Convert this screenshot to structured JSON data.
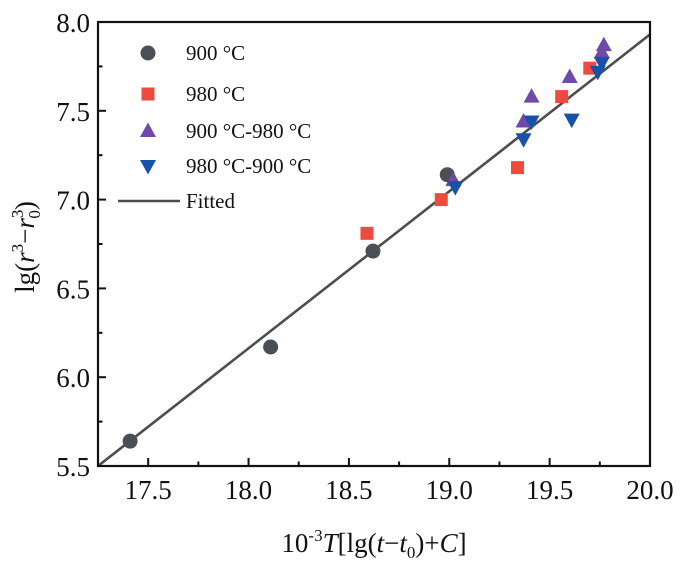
{
  "chart_data": {
    "type": "scatter",
    "title": "",
    "xlabel": "10-3T[lg(t−t0)+C]",
    "xlabel_parts": {
      "base": "10",
      "exp": "-3",
      "var": "T",
      "rest1": "[lg(",
      "t": "t",
      "minus": "−",
      "t0": "t",
      "sub0": "0",
      "rest2": ")+",
      "C": "C",
      "close": "]"
    },
    "ylabel": "lg(r3−r03)",
    "ylabel_parts": {
      "pre": "lg(",
      "r1": "r",
      "sup1": "3",
      "minus": "−",
      "r2": "r",
      "sup2": "3",
      "sub2": "0",
      "close": ")"
    },
    "xlim": [
      17.25,
      20.0
    ],
    "ylim": [
      5.5,
      8.0
    ],
    "x_ticks": [
      17.5,
      18.0,
      18.5,
      19.0,
      19.5,
      20.0
    ],
    "x_tick_labels": [
      "17.5",
      "18.0",
      "18.5",
      "19.0",
      "19.5",
      "20.0"
    ],
    "x_minor_ticks": [
      17.75,
      18.25,
      18.75,
      19.25,
      19.75
    ],
    "y_ticks": [
      5.5,
      6.0,
      6.5,
      7.0,
      7.5,
      8.0
    ],
    "y_tick_labels": [
      "5.5",
      "6.0",
      "6.5",
      "7.0",
      "7.5",
      "8.0"
    ],
    "y_minor_ticks": [
      5.75,
      6.25,
      6.75,
      7.25,
      7.75
    ],
    "grid": false,
    "legend_position": "top-left",
    "series": [
      {
        "name": "900 °C",
        "marker": "circle",
        "color": "#4a4f55",
        "points": [
          [
            17.41,
            5.64
          ],
          [
            18.11,
            6.17
          ],
          [
            18.62,
            6.71
          ],
          [
            18.99,
            7.14
          ]
        ]
      },
      {
        "name": "980 °C",
        "marker": "square",
        "color": "#ef4a3f",
        "points": [
          [
            18.59,
            6.81
          ],
          [
            18.96,
            7.0
          ],
          [
            19.34,
            7.18
          ],
          [
            19.56,
            7.58
          ],
          [
            19.7,
            7.74
          ]
        ]
      },
      {
        "name": "900 °C-980 °C",
        "marker": "triangle-up",
        "color": "#6f4aa8",
        "points": [
          [
            19.02,
            7.11
          ],
          [
            19.37,
            7.44
          ],
          [
            19.41,
            7.58
          ],
          [
            19.6,
            7.69
          ],
          [
            19.76,
            7.83
          ],
          [
            19.77,
            7.87
          ]
        ]
      },
      {
        "name": "980 °C-900 °C",
        "marker": "triangle-down",
        "color": "#1653a8",
        "points": [
          [
            19.03,
            7.07
          ],
          [
            19.37,
            7.34
          ],
          [
            19.41,
            7.44
          ],
          [
            19.61,
            7.45
          ],
          [
            19.74,
            7.72
          ],
          [
            19.76,
            7.77
          ]
        ]
      }
    ],
    "fit_line": {
      "name": "Fitted",
      "color": "#4d4d4d",
      "points": [
        [
          17.25,
          5.5
        ],
        [
          20.0,
          7.93
        ]
      ]
    }
  }
}
